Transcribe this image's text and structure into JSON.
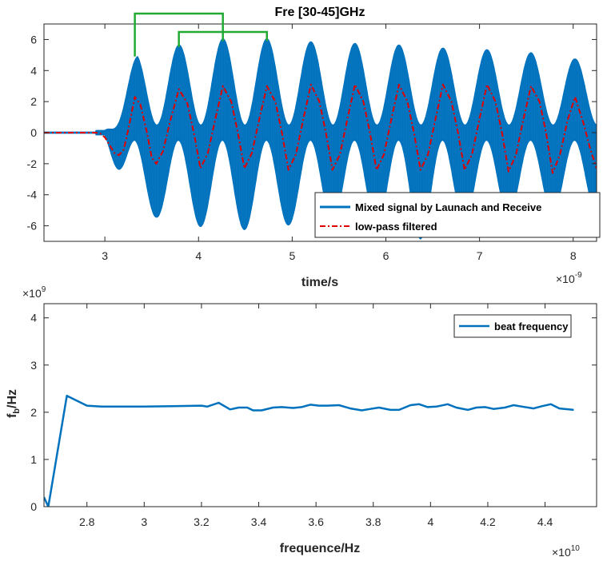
{
  "colors": {
    "mixed": "#0072BD",
    "lowpass": "#E00000",
    "beat": "#0072BD",
    "bracket": "#22AA33",
    "axis": "#262626"
  },
  "chart_data": [
    {
      "type": "line",
      "title": "Fre [30-45]GHz",
      "xlabel": "time/s",
      "ylabel": "",
      "x_exponent_label": "×10",
      "x_exponent_power": "-9",
      "xlim": [
        2.35,
        8.25
      ],
      "ylim": [
        -7,
        7
      ],
      "xticks": [
        3,
        4,
        5,
        6,
        7,
        8
      ],
      "xtick_labels": [
        "3",
        "4",
        "5",
        "6",
        "7",
        "8"
      ],
      "yticks": [
        -6,
        -4,
        -2,
        0,
        2,
        4,
        6
      ],
      "ytick_labels": [
        "-6",
        "-4",
        "-2",
        "0",
        "2",
        "4",
        "6"
      ],
      "legend_position": "bottom-right",
      "series": [
        {
          "name": "Mixed signal by Launach and Receive",
          "style": "solid",
          "envelope_peaks_x": [
            3.32,
            3.79,
            4.26,
            4.73,
            5.2,
            5.67,
            6.14,
            6.61,
            7.08,
            7.55,
            8.02
          ],
          "envelope_upper": [
            4.9,
            5.5,
            5.9,
            5.9,
            5.7,
            5.6,
            5.5,
            5.3,
            5.2,
            5.0,
            4.6
          ],
          "envelope_troughs_x": [
            3.55,
            4.02,
            4.49,
            4.96,
            5.43,
            5.9,
            6.37,
            6.84,
            7.31,
            7.78
          ],
          "envelope_lower": [
            -5.3,
            -5.9,
            -6.1,
            -5.8,
            -5.6,
            -5.7,
            -6.7,
            -5.4,
            -5.2,
            -5.0
          ]
        },
        {
          "name": "low-pass filtered",
          "style": "dash-dot",
          "x": [
            2.35,
            2.6,
            2.8,
            2.9,
            2.95,
            3.0,
            3.05,
            3.1,
            3.15,
            3.2,
            3.25,
            3.32,
            3.38,
            3.45,
            3.5,
            3.55,
            3.62,
            3.7,
            3.79,
            3.88,
            3.95,
            4.02,
            4.1,
            4.18,
            4.26,
            4.35,
            4.42,
            4.49,
            4.57,
            4.65,
            4.73,
            4.82,
            4.89,
            4.96,
            5.04,
            5.12,
            5.2,
            5.29,
            5.36,
            5.43,
            5.51,
            5.59,
            5.67,
            5.76,
            5.83,
            5.9,
            5.98,
            6.06,
            6.14,
            6.23,
            6.3,
            6.37,
            6.45,
            6.53,
            6.61,
            6.7,
            6.77,
            6.84,
            6.92,
            7.0,
            7.08,
            7.17,
            7.24,
            7.31,
            7.39,
            7.47,
            7.55,
            7.64,
            7.71,
            7.78,
            7.86,
            7.94,
            8.02,
            8.11,
            8.18,
            8.25
          ],
          "y": [
            0,
            0,
            0,
            0,
            -0.05,
            -0.3,
            -0.8,
            -1.3,
            -1.45,
            -1.1,
            0.2,
            2.3,
            1.8,
            0.0,
            -1.6,
            -2.0,
            -1.2,
            0.8,
            2.8,
            1.9,
            0.0,
            -2.3,
            -1.3,
            0.9,
            3.0,
            2.0,
            0.0,
            -2.3,
            -1.3,
            0.9,
            3.0,
            2.0,
            0.0,
            -2.4,
            -1.4,
            0.9,
            3.1,
            2.0,
            0.0,
            -2.4,
            -1.4,
            0.9,
            3.1,
            2.0,
            0.0,
            -2.4,
            -1.4,
            0.9,
            3.1,
            2.0,
            0.0,
            -2.4,
            -1.4,
            0.9,
            3.1,
            2.0,
            0.0,
            -2.4,
            -1.4,
            0.9,
            3.1,
            2.0,
            0.0,
            -2.5,
            -1.4,
            0.9,
            3.0,
            2.0,
            0.0,
            -2.6,
            -1.4,
            0.8,
            2.3,
            0.6,
            -1.0,
            -2.3
          ]
        }
      ]
    },
    {
      "type": "line",
      "title": "",
      "xlabel": "frequence/Hz",
      "ylabel_main": "f",
      "ylabel_sub": "b",
      "ylabel_rest": "/Hz",
      "x_exponent_label": "×10",
      "x_exponent_power": "10",
      "y_exponent_label": "×10",
      "y_exponent_power": "9",
      "xlim": [
        2.65,
        4.58
      ],
      "ylim": [
        0,
        4.3
      ],
      "xticks": [
        2.8,
        3.0,
        3.2,
        3.4,
        3.6,
        3.8,
        4.0,
        4.2,
        4.4
      ],
      "xtick_labels": [
        "2.8",
        "3",
        "3.2",
        "3.4",
        "3.6",
        "3.8",
        "4",
        "4.2",
        "4.4"
      ],
      "yticks": [
        0,
        1,
        2,
        3,
        4
      ],
      "ytick_labels": [
        "0",
        "1",
        "2",
        "3",
        "4"
      ],
      "legend_position": "top-right",
      "series": [
        {
          "name": "beat frequency",
          "x": [
            2.65,
            2.665,
            2.73,
            2.8,
            2.85,
            2.9,
            3.0,
            3.1,
            3.2,
            3.22,
            3.26,
            3.3,
            3.33,
            3.36,
            3.38,
            3.41,
            3.45,
            3.48,
            3.52,
            3.55,
            3.58,
            3.61,
            3.64,
            3.68,
            3.72,
            3.76,
            3.79,
            3.82,
            3.86,
            3.89,
            3.93,
            3.96,
            3.99,
            4.02,
            4.06,
            4.09,
            4.13,
            4.16,
            4.19,
            4.22,
            4.26,
            4.29,
            4.32,
            4.36,
            4.39,
            4.42,
            4.45,
            4.5
          ],
          "y": [
            0.2,
            0.0,
            2.35,
            2.14,
            2.12,
            2.12,
            2.12,
            2.13,
            2.14,
            2.12,
            2.2,
            2.06,
            2.1,
            2.1,
            2.04,
            2.04,
            2.1,
            2.11,
            2.09,
            2.11,
            2.16,
            2.14,
            2.14,
            2.15,
            2.08,
            2.04,
            2.07,
            2.1,
            2.05,
            2.05,
            2.15,
            2.17,
            2.11,
            2.12,
            2.17,
            2.1,
            2.05,
            2.1,
            2.11,
            2.07,
            2.1,
            2.15,
            2.12,
            2.08,
            2.13,
            2.17,
            2.08,
            2.05
          ]
        }
      ]
    }
  ]
}
